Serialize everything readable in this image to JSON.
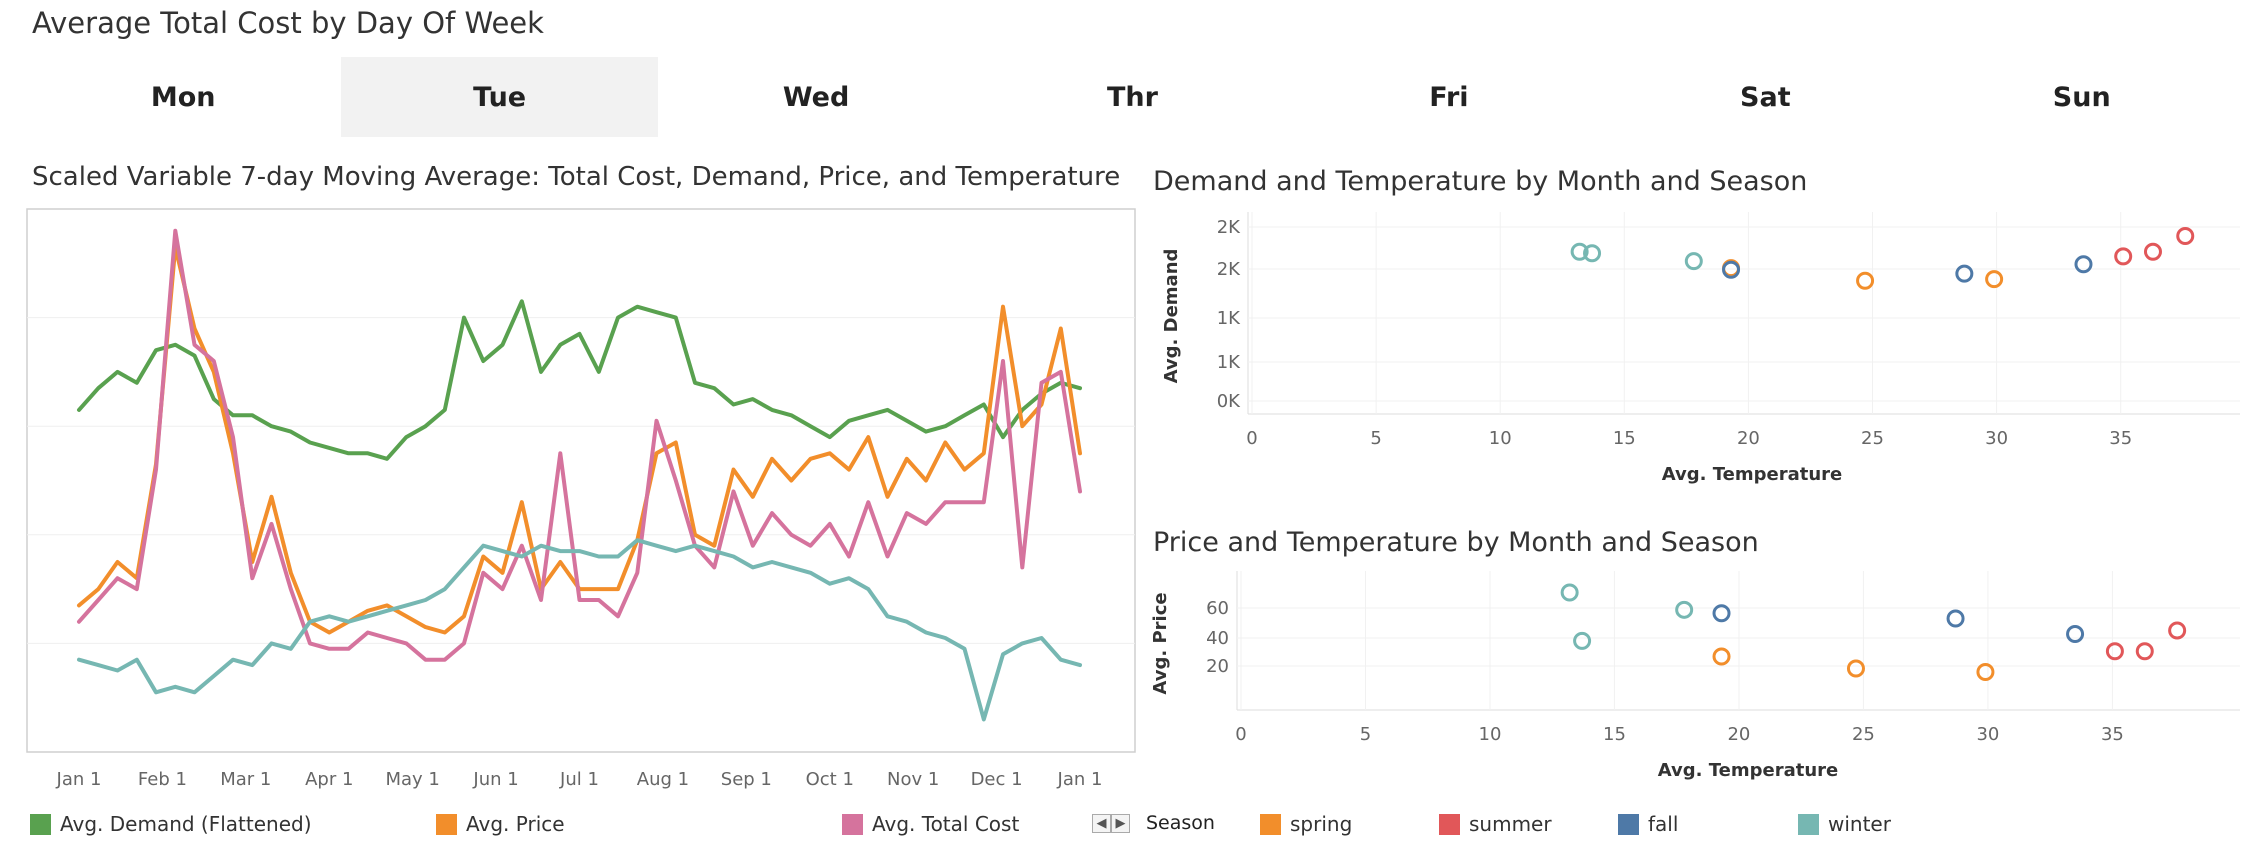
{
  "page": {
    "title": "Average Total Cost by Day Of Week"
  },
  "day_tabs": [
    {
      "label": "Mon",
      "selected": false
    },
    {
      "label": "Tue",
      "selected": true
    },
    {
      "label": "Wed",
      "selected": false
    },
    {
      "label": "Thr",
      "selected": false
    },
    {
      "label": "Fri",
      "selected": false
    },
    {
      "label": "Sat",
      "selected": false
    },
    {
      "label": "Sun",
      "selected": false
    }
  ],
  "colors": {
    "demand": "#59a14f",
    "price": "#f28e2b",
    "total_cost": "#d5739d",
    "spring": "#f28e2b",
    "summer": "#e15759",
    "fall": "#4e79a7",
    "winter": "#76b7b2"
  },
  "legend_lines": [
    {
      "label": "Avg. Demand (Flattened)",
      "color": "#59a14f"
    },
    {
      "label": "Avg. Price",
      "color": "#f28e2b"
    },
    {
      "label": "Avg. Total Cost",
      "color": "#d5739d"
    }
  ],
  "legend_season": {
    "title": "Season",
    "items": [
      {
        "label": "spring",
        "color": "#f28e2b"
      },
      {
        "label": "summer",
        "color": "#e15759"
      },
      {
        "label": "fall",
        "color": "#4e79a7"
      },
      {
        "label": "winter",
        "color": "#76b7b2"
      }
    ]
  },
  "chart_data": [
    {
      "type": "line",
      "title": "Scaled Variable 7-day Moving Average: Total Cost, Demand, Price, and Temperature",
      "x_ticks": [
        "Jan 1",
        "Feb 1",
        "Mar 1",
        "Apr 1",
        "May 1",
        "Jun 1",
        "Jul 1",
        "Aug 1",
        "Sep 1",
        "Oct 1",
        "Nov 1",
        "Dec 1",
        "Jan 1"
      ],
      "y_axis": "scaled, no tick labels",
      "ylim": [
        0,
        100
      ],
      "grid": true,
      "series": [
        {
          "name": "Avg. Demand (Flattened)",
          "color": "#59a14f",
          "x": [
            1,
            8,
            15,
            22,
            29,
            36,
            43,
            50,
            57,
            64,
            71,
            78,
            85,
            92,
            99,
            106,
            113,
            120,
            127,
            134,
            141,
            148,
            155,
            162,
            169,
            176,
            183,
            190,
            197,
            204,
            211,
            218,
            225,
            232,
            239,
            246,
            253,
            260,
            267,
            274,
            281,
            288,
            295,
            302,
            309,
            316,
            323,
            330,
            337,
            344,
            351,
            358,
            365
          ],
          "y": [
            63,
            67,
            70,
            68,
            74,
            75,
            73,
            65,
            62,
            62,
            60,
            59,
            57,
            56,
            55,
            55,
            54,
            58,
            60,
            63,
            80,
            72,
            75,
            83,
            70,
            75,
            77,
            70,
            80,
            82,
            81,
            80,
            68,
            67,
            64,
            65,
            63,
            62,
            60,
            58,
            61,
            62,
            63,
            61,
            59,
            60,
            62,
            64,
            58,
            63,
            66,
            68,
            67
          ]
        },
        {
          "name": "Avg. Price",
          "color": "#f28e2b",
          "x": [
            1,
            8,
            15,
            22,
            29,
            36,
            43,
            50,
            57,
            64,
            71,
            78,
            85,
            92,
            99,
            106,
            113,
            120,
            127,
            134,
            141,
            148,
            155,
            162,
            169,
            176,
            183,
            190,
            197,
            204,
            211,
            218,
            225,
            232,
            239,
            246,
            253,
            260,
            267,
            274,
            281,
            288,
            295,
            302,
            309,
            316,
            323,
            330,
            337,
            344,
            351,
            358,
            365
          ],
          "y": [
            27,
            30,
            35,
            32,
            53,
            93,
            78,
            70,
            55,
            35,
            47,
            33,
            24,
            22,
            24,
            26,
            27,
            25,
            23,
            22,
            25,
            36,
            33,
            46,
            30,
            35,
            30,
            30,
            30,
            39,
            55,
            57,
            40,
            38,
            52,
            47,
            54,
            50,
            54,
            55,
            52,
            58,
            47,
            54,
            50,
            57,
            52,
            55,
            82,
            60,
            64,
            78,
            55
          ]
        },
        {
          "name": "Avg. Total Cost",
          "color": "#d5739d",
          "x": [
            1,
            8,
            15,
            22,
            29,
            36,
            43,
            50,
            57,
            64,
            71,
            78,
            85,
            92,
            99,
            106,
            113,
            120,
            127,
            134,
            141,
            148,
            155,
            162,
            169,
            176,
            183,
            190,
            197,
            204,
            211,
            218,
            225,
            232,
            239,
            246,
            253,
            260,
            267,
            274,
            281,
            288,
            295,
            302,
            309,
            316,
            323,
            330,
            337,
            344,
            351,
            358,
            365
          ],
          "y": [
            24,
            28,
            32,
            30,
            52,
            96,
            75,
            72,
            58,
            32,
            42,
            30,
            20,
            19,
            19,
            22,
            21,
            20,
            17,
            17,
            20,
            33,
            30,
            38,
            28,
            55,
            28,
            28,
            25,
            33,
            61,
            50,
            38,
            34,
            48,
            38,
            44,
            40,
            38,
            42,
            36,
            46,
            36,
            44,
            42,
            46,
            46,
            46,
            72,
            34,
            68,
            70,
            48
          ]
        },
        {
          "name": "Avg. Temperature",
          "color": "#76b7b2",
          "x": [
            1,
            8,
            15,
            22,
            29,
            36,
            43,
            50,
            57,
            64,
            71,
            78,
            85,
            92,
            99,
            106,
            113,
            120,
            127,
            134,
            141,
            148,
            155,
            162,
            169,
            176,
            183,
            190,
            197,
            204,
            211,
            218,
            225,
            232,
            239,
            246,
            253,
            260,
            267,
            274,
            281,
            288,
            295,
            302,
            309,
            316,
            323,
            330,
            337,
            344,
            351,
            358,
            365
          ],
          "y": [
            17,
            16,
            15,
            17,
            11,
            12,
            11,
            14,
            17,
            16,
            20,
            19,
            24,
            25,
            24,
            25,
            26,
            27,
            28,
            30,
            34,
            38,
            37,
            36,
            38,
            37,
            37,
            36,
            36,
            39,
            38,
            37,
            38,
            37,
            36,
            34,
            35,
            34,
            33,
            31,
            32,
            30,
            25,
            24,
            22,
            21,
            19,
            6,
            18,
            20,
            21,
            17,
            16
          ]
        }
      ]
    },
    {
      "type": "scatter",
      "title": "Demand and Temperature by Month and Season",
      "xlabel": "Avg. Temperature",
      "ylabel": "Avg. Demand",
      "x_ticks": [
        "0",
        "5",
        "10",
        "15",
        "20",
        "25",
        "30",
        "35"
      ],
      "y_ticks": [
        "2K",
        "2K",
        "1K",
        "1K",
        "0K"
      ],
      "xlim": [
        0,
        39
      ],
      "ylim": [
        0,
        2500
      ],
      "points": [
        {
          "season": "winter",
          "x": 13.2,
          "y": 2070
        },
        {
          "season": "winter",
          "x": 13.7,
          "y": 2050
        },
        {
          "season": "winter",
          "x": 17.8,
          "y": 1950
        },
        {
          "season": "spring",
          "x": 19.3,
          "y": 1860
        },
        {
          "season": "fall",
          "x": 19.3,
          "y": 1840
        },
        {
          "season": "spring",
          "x": 24.7,
          "y": 1700
        },
        {
          "season": "fall",
          "x": 28.7,
          "y": 1790
        },
        {
          "season": "spring",
          "x": 29.9,
          "y": 1720
        },
        {
          "season": "fall",
          "x": 33.5,
          "y": 1910
        },
        {
          "season": "summer",
          "x": 35.1,
          "y": 2010
        },
        {
          "season": "summer",
          "x": 36.3,
          "y": 2070
        },
        {
          "season": "summer",
          "x": 37.6,
          "y": 2270
        }
      ]
    },
    {
      "type": "scatter",
      "title": "Price and Temperature by Month and Season",
      "xlabel": "Avg. Temperature",
      "ylabel": "Avg. Price",
      "x_ticks": [
        "0",
        "5",
        "10",
        "15",
        "20",
        "25",
        "30",
        "35"
      ],
      "y_ticks": [
        "20",
        "40",
        "60"
      ],
      "xlim": [
        0,
        39
      ],
      "ylim": [
        3,
        80
      ],
      "points": [
        {
          "season": "winter",
          "x": 13.2,
          "y": 71
        },
        {
          "season": "winter",
          "x": 13.7,
          "y": 43
        },
        {
          "season": "winter",
          "x": 17.8,
          "y": 61
        },
        {
          "season": "fall",
          "x": 19.3,
          "y": 59
        },
        {
          "season": "spring",
          "x": 19.3,
          "y": 34
        },
        {
          "season": "spring",
          "x": 24.7,
          "y": 27
        },
        {
          "season": "fall",
          "x": 28.7,
          "y": 56
        },
        {
          "season": "spring",
          "x": 29.9,
          "y": 25
        },
        {
          "season": "fall",
          "x": 33.5,
          "y": 47
        },
        {
          "season": "summer",
          "x": 35.1,
          "y": 37
        },
        {
          "season": "summer",
          "x": 36.3,
          "y": 37
        },
        {
          "season": "summer",
          "x": 37.6,
          "y": 49
        }
      ]
    }
  ]
}
